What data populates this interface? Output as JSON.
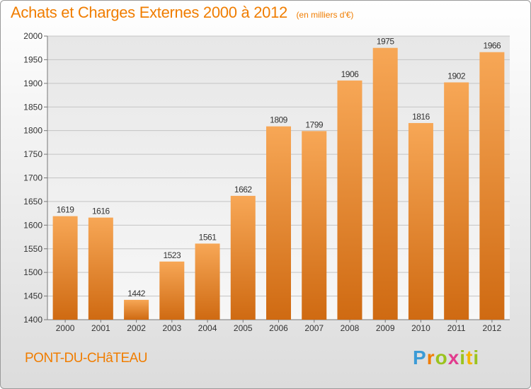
{
  "chart_data": {
    "type": "bar",
    "title": "Achats et Charges Externes 2000 à 2012",
    "subtitle": "(en milliers d'€)",
    "categories": [
      "2000",
      "2001",
      "2002",
      "2003",
      "2004",
      "2005",
      "2006",
      "2007",
      "2008",
      "2009",
      "2010",
      "2011",
      "2012"
    ],
    "values": [
      1619,
      1616,
      1442,
      1523,
      1561,
      1662,
      1809,
      1799,
      1906,
      1975,
      1816,
      1902,
      1966
    ],
    "ylim": [
      1400,
      2000
    ],
    "yticks": [
      1400,
      1450,
      1500,
      1550,
      1600,
      1650,
      1700,
      1750,
      1800,
      1850,
      1900,
      1950,
      2000
    ],
    "grid": true,
    "bar_color": "#f0912e",
    "label": "PONT-DU-CHâTEAU"
  },
  "brand": {
    "text": "Proxiti",
    "colors": [
      "#3b9bd6",
      "#f07d00",
      "#9bc31e",
      "#e23c8e",
      "#f5b400"
    ]
  }
}
